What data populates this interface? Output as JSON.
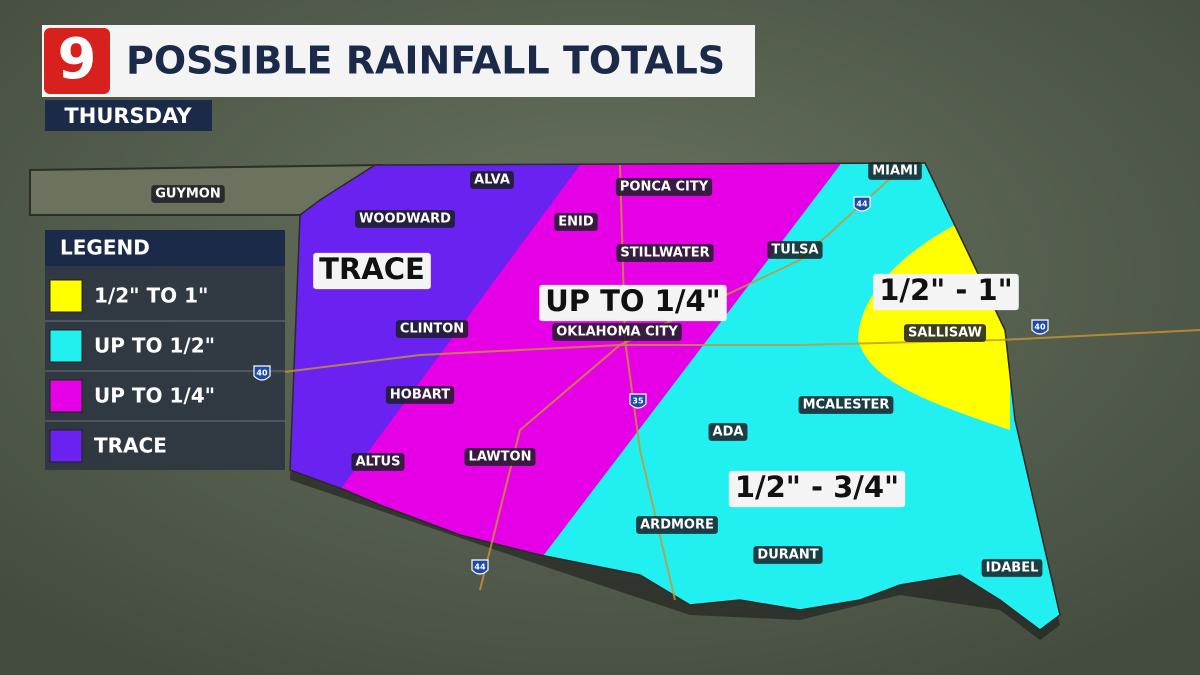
{
  "header": {
    "logo": "9",
    "title": "POSSIBLE RAINFALL TOTALS",
    "subtitle": "THURSDAY"
  },
  "legend": {
    "title": "LEGEND",
    "items": [
      {
        "label": "1/2\" TO 1\"",
        "color": "#ffff00"
      },
      {
        "label": "UP TO 1/2\"",
        "color": "#22f0f0"
      },
      {
        "label": "UP TO 1/4\"",
        "color": "#e600e6"
      },
      {
        "label": "TRACE",
        "color": "#6a22f0"
      }
    ]
  },
  "zone_labels": [
    "TRACE",
    "UP TO 1/4\"",
    "1/2\" - 1\"",
    "1/2\" - 3/4\""
  ],
  "cities": [
    "GUYMON",
    "ALVA",
    "WOODWARD",
    "PONCA CITY",
    "ENID",
    "STILLWATER",
    "TULSA",
    "MIAMI",
    "CLINTON",
    "OKLAHOMA CITY",
    "SALLISAW",
    "HOBART",
    "MCALESTER",
    "ADA",
    "ALTUS",
    "LAWTON",
    "ARDMORE",
    "DURANT",
    "IDABEL"
  ],
  "highways": [
    "44",
    "40",
    "40",
    "35",
    "44"
  ]
}
